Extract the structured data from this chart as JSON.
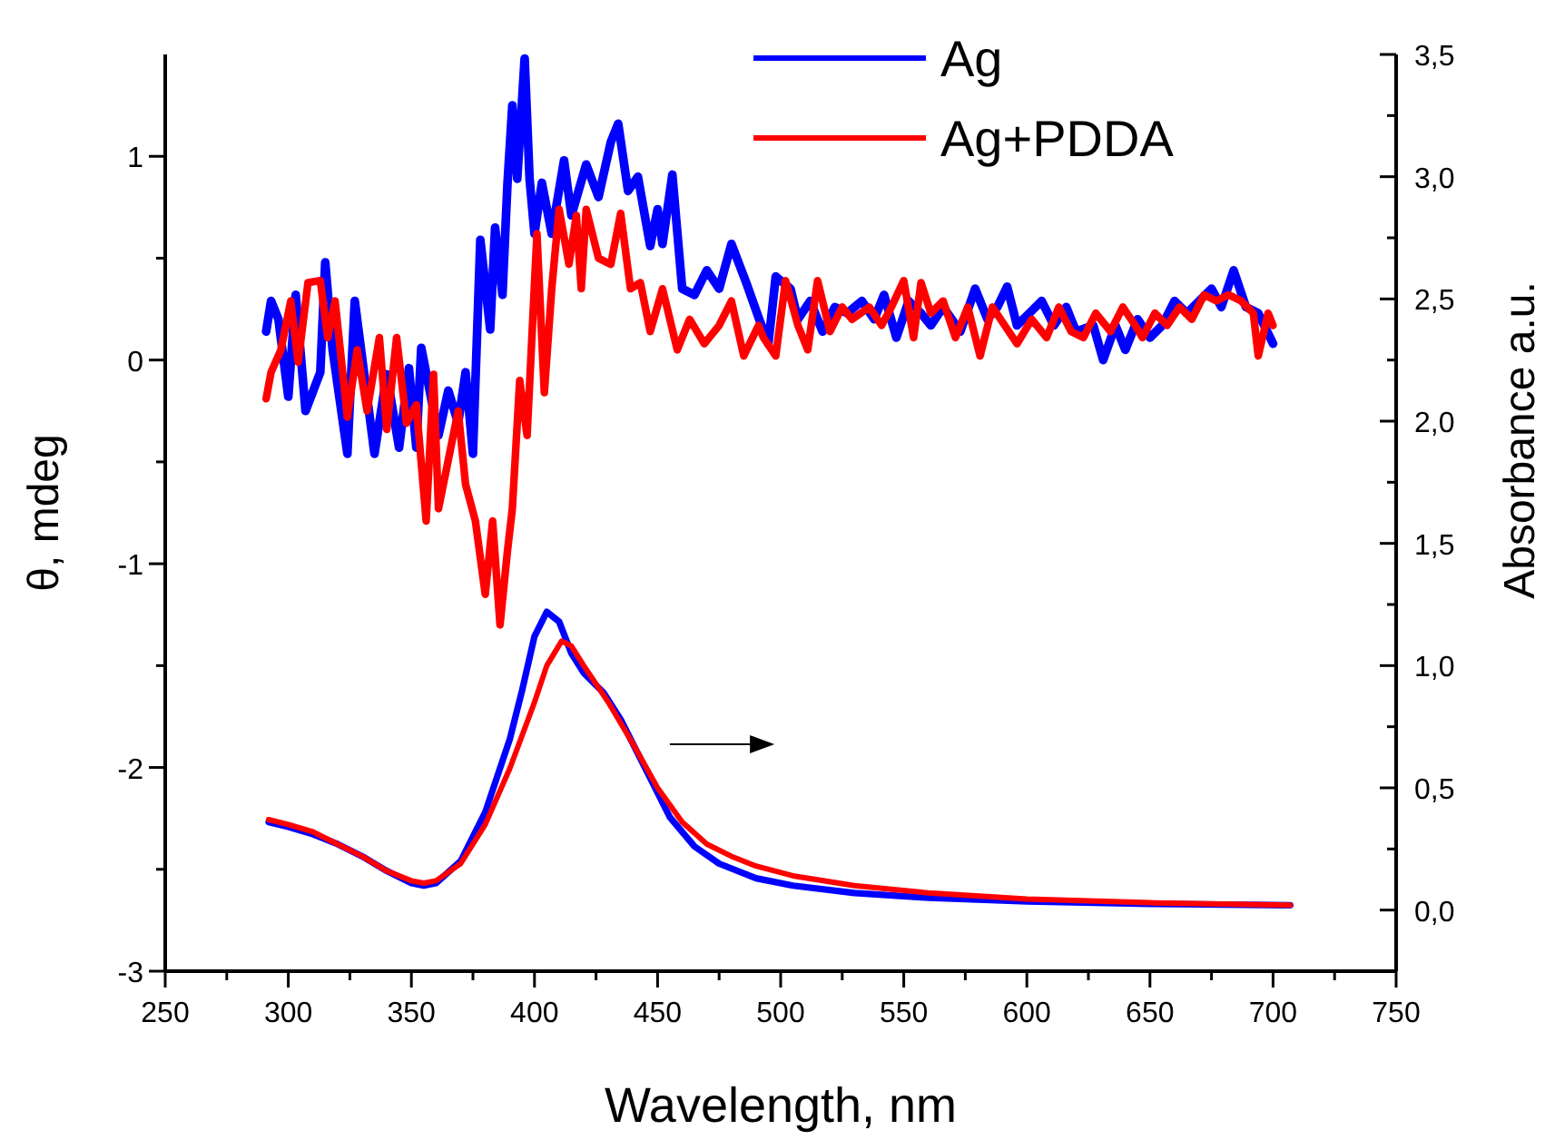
{
  "chart_data": {
    "type": "line",
    "xlabel": "Wavelength, nm",
    "ylabel": "θ, mdeg",
    "y2label": "Absorbance a.u.",
    "xlim": [
      250,
      750
    ],
    "xticks": [
      250,
      {
        "value": 275,
        "label": null
      },
      300,
      {
        "value": 325,
        "label": null
      },
      350,
      {
        "value": 375,
        "label": null
      },
      400,
      {
        "value": 425,
        "label": null
      },
      450,
      {
        "value": 475,
        "label": null
      },
      500,
      {
        "value": 525,
        "label": null
      },
      550,
      {
        "value": 575,
        "label": null
      },
      600,
      {
        "value": 625,
        "label": null
      },
      650,
      {
        "value": 675,
        "label": null
      },
      700,
      {
        "value": 725,
        "label": null
      },
      750
    ],
    "ylim": [
      -3,
      1.5
    ],
    "yticks": [
      -3,
      {
        "value": -2.5,
        "label": null
      },
      -2,
      {
        "value": -1.5,
        "label": null
      },
      -1,
      {
        "value": -0.5,
        "label": null
      },
      0,
      {
        "value": 0.5,
        "label": null
      },
      1
    ],
    "y2lim": [
      -0.25,
      3.5
    ],
    "y2ticks": [
      {
        "value": 0,
        "label": "0,0"
      },
      {
        "value": 0.25,
        "label": null
      },
      {
        "value": 0.5,
        "label": "0,5"
      },
      {
        "value": 0.75,
        "label": null
      },
      {
        "value": 1,
        "label": "1,0"
      },
      {
        "value": 1.25,
        "label": null
      },
      {
        "value": 1.5,
        "label": "1,5"
      },
      {
        "value": 1.75,
        "label": null
      },
      {
        "value": 2,
        "label": "2,0"
      },
      {
        "value": 2.25,
        "label": null
      },
      {
        "value": 2.5,
        "label": "2,5"
      },
      {
        "value": 2.75,
        "label": null
      },
      {
        "value": 3,
        "label": "3,0"
      },
      {
        "value": 3.25,
        "label": null
      },
      {
        "value": 3.5,
        "label": "3,5"
      }
    ],
    "legend": "top",
    "grid": false,
    "marker": "none",
    "line_style": "solid",
    "series": [
      {
        "name": "Ag",
        "color": "#0000ff",
        "x": [
          291,
          293,
          296,
          300,
          303,
          307,
          313,
          315,
          318,
          324,
          327,
          335,
          340,
          345,
          349,
          352,
          354,
          361,
          365,
          369,
          372,
          375,
          378,
          382,
          384,
          387,
          389,
          391,
          393,
          396,
          398,
          400,
          403,
          407,
          412,
          415,
          421,
          426,
          431,
          434,
          438,
          442,
          447,
          450,
          452,
          456,
          460,
          465,
          470,
          475,
          480,
          486,
          491,
          495,
          498,
          504,
          507,
          512,
          517,
          522,
          527,
          533,
          538,
          542,
          547,
          552,
          557,
          561,
          566,
          573,
          579,
          584,
          588,
          592,
          596,
          601,
          606,
          611,
          616,
          620,
          627,
          631,
          636,
          640,
          645,
          650,
          655,
          660,
          665,
          670,
          675,
          679,
          684,
          689,
          694,
          700
        ],
        "values": [
          0.14,
          0.29,
          0.2,
          -0.18,
          0.32,
          -0.25,
          -0.06,
          0.48,
          0.05,
          -0.46,
          0.29,
          -0.46,
          -0.07,
          -0.43,
          -0.04,
          -0.43,
          0.06,
          -0.37,
          -0.15,
          -0.31,
          -0.06,
          -0.46,
          0.59,
          0.15,
          0.65,
          0.32,
          0.86,
          1.25,
          0.89,
          1.48,
          0.89,
          0.62,
          0.87,
          0.62,
          0.98,
          0.71,
          0.96,
          0.8,
          1.07,
          1.16,
          0.83,
          0.9,
          0.56,
          0.74,
          0.57,
          0.91,
          0.35,
          0.32,
          0.44,
          0.35,
          0.57,
          0.38,
          0.21,
          0.08,
          0.41,
          0.35,
          0.2,
          0.29,
          0.14,
          0.26,
          0.23,
          0.29,
          0.2,
          0.32,
          0.11,
          0.29,
          0.23,
          0.17,
          0.26,
          0.14,
          0.35,
          0.2,
          0.26,
          0.36,
          0.17,
          0.23,
          0.29,
          0.17,
          0.26,
          0.14,
          0.17,
          0.0,
          0.17,
          0.05,
          0.2,
          0.11,
          0.17,
          0.29,
          0.23,
          0.29,
          0.35,
          0.26,
          0.44,
          0.26,
          0.23,
          0.08
        ]
      },
      {
        "name": "Ag+PDDA",
        "color": "#ff0000",
        "x": [
          291,
          293,
          297,
          301,
          304,
          308,
          313,
          316,
          319,
          324,
          328,
          332,
          337,
          340,
          344,
          348,
          352,
          356,
          359,
          361,
          365,
          369,
          372,
          376,
          380,
          383,
          386,
          389,
          391,
          394,
          397,
          401,
          404,
          407,
          410,
          414,
          417,
          419,
          421,
          426,
          431,
          435,
          439,
          443,
          447,
          452,
          458,
          463,
          469,
          475,
          480,
          485,
          491,
          493,
          498,
          502,
          507,
          511,
          515,
          520,
          525,
          529,
          536,
          541,
          545,
          550,
          554,
          557,
          561,
          566,
          571,
          576,
          581,
          586,
          591,
          596,
          602,
          608,
          613,
          618,
          623,
          628,
          634,
          639,
          644,
          647,
          652,
          657,
          662,
          667,
          672,
          677,
          682,
          687,
          692,
          694,
          698,
          700
        ],
        "values": [
          -0.19,
          -0.06,
          0.05,
          0.29,
          -0.01,
          0.38,
          0.39,
          0.11,
          0.29,
          -0.28,
          0.05,
          -0.25,
          0.11,
          -0.34,
          0.11,
          -0.31,
          -0.22,
          -0.79,
          -0.07,
          -0.73,
          -0.49,
          -0.25,
          -0.61,
          -0.79,
          -1.15,
          -0.79,
          -1.3,
          -0.94,
          -0.73,
          -0.1,
          -0.37,
          0.62,
          -0.16,
          0.35,
          0.74,
          0.47,
          0.71,
          0.35,
          0.74,
          0.5,
          0.47,
          0.72,
          0.35,
          0.38,
          0.14,
          0.35,
          0.05,
          0.2,
          0.08,
          0.17,
          0.29,
          0.02,
          0.17,
          0.11,
          0.02,
          0.39,
          0.17,
          0.05,
          0.39,
          0.14,
          0.26,
          0.2,
          0.26,
          0.17,
          0.26,
          0.39,
          0.11,
          0.38,
          0.23,
          0.29,
          0.11,
          0.26,
          0.02,
          0.26,
          0.17,
          0.08,
          0.2,
          0.11,
          0.26,
          0.14,
          0.11,
          0.23,
          0.14,
          0.26,
          0.17,
          0.11,
          0.23,
          0.17,
          0.26,
          0.2,
          0.32,
          0.29,
          0.32,
          0.29,
          0.23,
          0.02,
          0.23,
          0.17
        ]
      },
      {
        "color": "#0000ff",
        "axis": "y2",
        "x": [
          292,
          300,
          310,
          320,
          330,
          340,
          350,
          355,
          360,
          370,
          380,
          390,
          395,
          400,
          405,
          410,
          415,
          420,
          428,
          435,
          445,
          455,
          465,
          475,
          490,
          505,
          530,
          560,
          600,
          650,
          707
        ],
        "values": [
          0.36,
          0.34,
          0.31,
          0.27,
          0.22,
          0.16,
          0.11,
          0.1,
          0.11,
          0.2,
          0.4,
          0.7,
          0.9,
          1.12,
          1.22,
          1.18,
          1.05,
          0.97,
          0.89,
          0.78,
          0.58,
          0.38,
          0.26,
          0.19,
          0.13,
          0.1,
          0.07,
          0.05,
          0.035,
          0.025,
          0.02
        ]
      },
      {
        "color": "#ff0000",
        "axis": "y2",
        "x": [
          292,
          300,
          310,
          320,
          330,
          340,
          350,
          355,
          360,
          370,
          380,
          390,
          400,
          405,
          411,
          415,
          420,
          430,
          440,
          450,
          460,
          470,
          480,
          490,
          505,
          530,
          560,
          600,
          650,
          707
        ],
        "values": [
          0.37,
          0.35,
          0.32,
          0.27,
          0.22,
          0.16,
          0.12,
          0.11,
          0.12,
          0.19,
          0.35,
          0.58,
          0.85,
          1.0,
          1.1,
          1.08,
          1.0,
          0.85,
          0.68,
          0.5,
          0.36,
          0.27,
          0.22,
          0.18,
          0.14,
          0.1,
          0.07,
          0.045,
          0.03,
          0.02
        ]
      }
    ]
  }
}
